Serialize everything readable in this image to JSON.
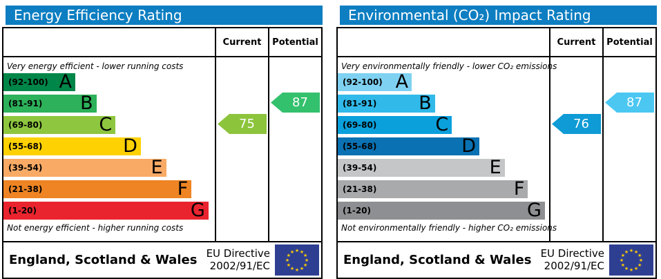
{
  "colors": {
    "header_bg": "#0d7ec1",
    "flag_bg": "#2e3f92",
    "flag_star": "#ffcc00"
  },
  "panels": [
    {
      "title": "Energy Efficiency Rating",
      "columns": {
        "current": "Current",
        "potential": "Potential"
      },
      "top_caption": "Very energy efficient - lower running costs",
      "bottom_caption": "Not energy efficient - higher running costs",
      "bands": [
        {
          "range": "(92-100)",
          "letter": "A",
          "color": "#008648",
          "width_pct": 34
        },
        {
          "range": "(81-91)",
          "letter": "B",
          "color": "#2db15a",
          "width_pct": 44
        },
        {
          "range": "(69-80)",
          "letter": "C",
          "color": "#8ec63f",
          "width_pct": 53
        },
        {
          "range": "(55-68)",
          "letter": "D",
          "color": "#fed102",
          "width_pct": 65
        },
        {
          "range": "(39-54)",
          "letter": "E",
          "color": "#f9aa65",
          "width_pct": 77
        },
        {
          "range": "(21-38)",
          "letter": "F",
          "color": "#ee8423",
          "width_pct": 89
        },
        {
          "range": "(1-20)",
          "letter": "G",
          "color": "#e9242e",
          "width_pct": 97
        }
      ],
      "current": {
        "value": "75",
        "band_index": 2,
        "color": "#8cc43c"
      },
      "potential": {
        "value": "87",
        "band_index": 1,
        "color": "#33c16d"
      },
      "footer": {
        "region": "England, Scotland & Wales",
        "directive_line1": "EU Directive",
        "directive_line2": "2002/91/EC"
      }
    },
    {
      "title": "Environmental (CO₂) Impact Rating",
      "columns": {
        "current": "Current",
        "potential": "Potential"
      },
      "top_caption": "Very environmentally friendly - lower CO₂ emissions",
      "bottom_caption": "Not environmentally friendly - higher CO₂ emissions",
      "bands": [
        {
          "range": "(92-100)",
          "letter": "A",
          "color": "#7fd1f2",
          "width_pct": 35
        },
        {
          "range": "(81-91)",
          "letter": "B",
          "color": "#30b9e9",
          "width_pct": 46
        },
        {
          "range": "(69-80)",
          "letter": "C",
          "color": "#0aa0dc",
          "width_pct": 54
        },
        {
          "range": "(55-68)",
          "letter": "D",
          "color": "#0a71b2",
          "width_pct": 67
        },
        {
          "range": "(39-54)",
          "letter": "E",
          "color": "#c5c6c8",
          "width_pct": 79
        },
        {
          "range": "(21-38)",
          "letter": "F",
          "color": "#a8aaab",
          "width_pct": 90
        },
        {
          "range": "(1-20)",
          "letter": "G",
          "color": "#8d8f92",
          "width_pct": 98
        }
      ],
      "current": {
        "value": "76",
        "band_index": 2,
        "color": "#0f9bd5"
      },
      "potential": {
        "value": "87",
        "band_index": 1,
        "color": "#4bc7f2"
      },
      "footer": {
        "region": "England, Scotland & Wales",
        "directive_line1": "EU Directive",
        "directive_line2": "2002/91/EC"
      }
    }
  ],
  "chart_data": [
    {
      "type": "bar",
      "orientation": "horizontal",
      "title": "Energy Efficiency Rating",
      "categories": [
        "A",
        "B",
        "C",
        "D",
        "E",
        "F",
        "G"
      ],
      "band_ranges": [
        "92-100",
        "81-91",
        "69-80",
        "55-68",
        "39-54",
        "21-38",
        "1-20"
      ],
      "bar_lengths_pct": [
        34,
        44,
        53,
        65,
        77,
        89,
        97
      ],
      "current": 75,
      "current_band": "C",
      "potential": 87,
      "potential_band": "B",
      "legend": [
        "Current",
        "Potential"
      ],
      "annotations": [
        "Very energy efficient - lower running costs",
        "Not energy efficient - higher running costs",
        "England, Scotland & Wales",
        "EU Directive 2002/91/EC"
      ]
    },
    {
      "type": "bar",
      "orientation": "horizontal",
      "title": "Environmental (CO₂) Impact Rating",
      "categories": [
        "A",
        "B",
        "C",
        "D",
        "E",
        "F",
        "G"
      ],
      "band_ranges": [
        "92-100",
        "81-91",
        "69-80",
        "55-68",
        "39-54",
        "21-38",
        "1-20"
      ],
      "bar_lengths_pct": [
        35,
        46,
        54,
        67,
        79,
        90,
        98
      ],
      "current": 76,
      "current_band": "C",
      "potential": 87,
      "potential_band": "B",
      "legend": [
        "Current",
        "Potential"
      ],
      "annotations": [
        "Very environmentally friendly - lower CO₂ emissions",
        "Not environmentally friendly - higher CO₂ emissions",
        "England, Scotland & Wales",
        "EU Directive 2002/91/EC"
      ]
    }
  ]
}
